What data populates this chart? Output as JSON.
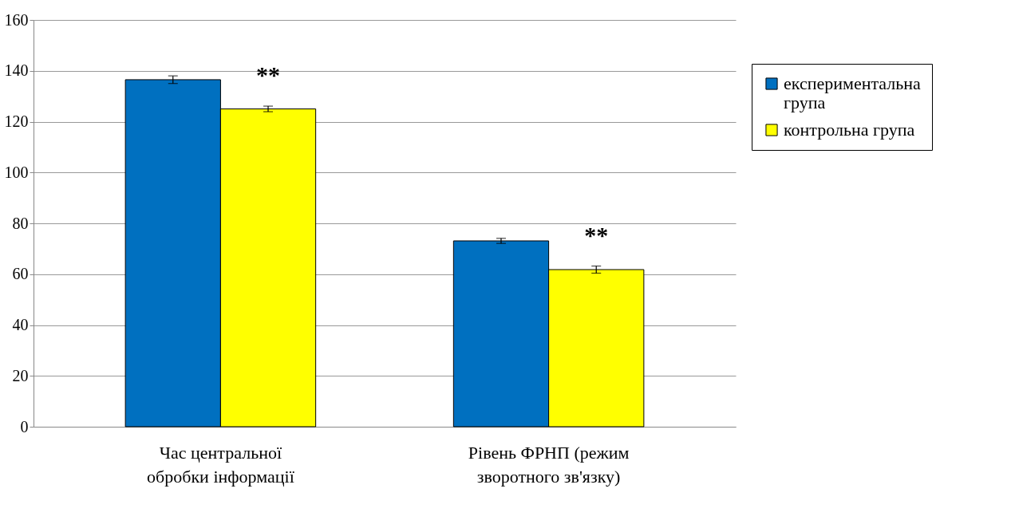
{
  "chart_data": {
    "type": "bar",
    "categories": [
      "Час центральної обробки інформації",
      "Рівень ФРНП (режим зворотного зв'язку)"
    ],
    "series": [
      {
        "name": "експериментальна група",
        "color": "#0070c0",
        "values": [
          136.5,
          73.1
        ],
        "errors": [
          1.5,
          1.0
        ]
      },
      {
        "name": "контрольна група",
        "color": "#ffff00",
        "values": [
          125.0,
          61.8
        ],
        "errors": [
          1.1,
          1.4
        ]
      }
    ],
    "annotations": [
      "**",
      "**"
    ],
    "ylim": [
      0,
      160
    ],
    "yticks": [
      0,
      20,
      40,
      60,
      80,
      100,
      120,
      140,
      160
    ],
    "grid": "y",
    "legend": "right"
  }
}
